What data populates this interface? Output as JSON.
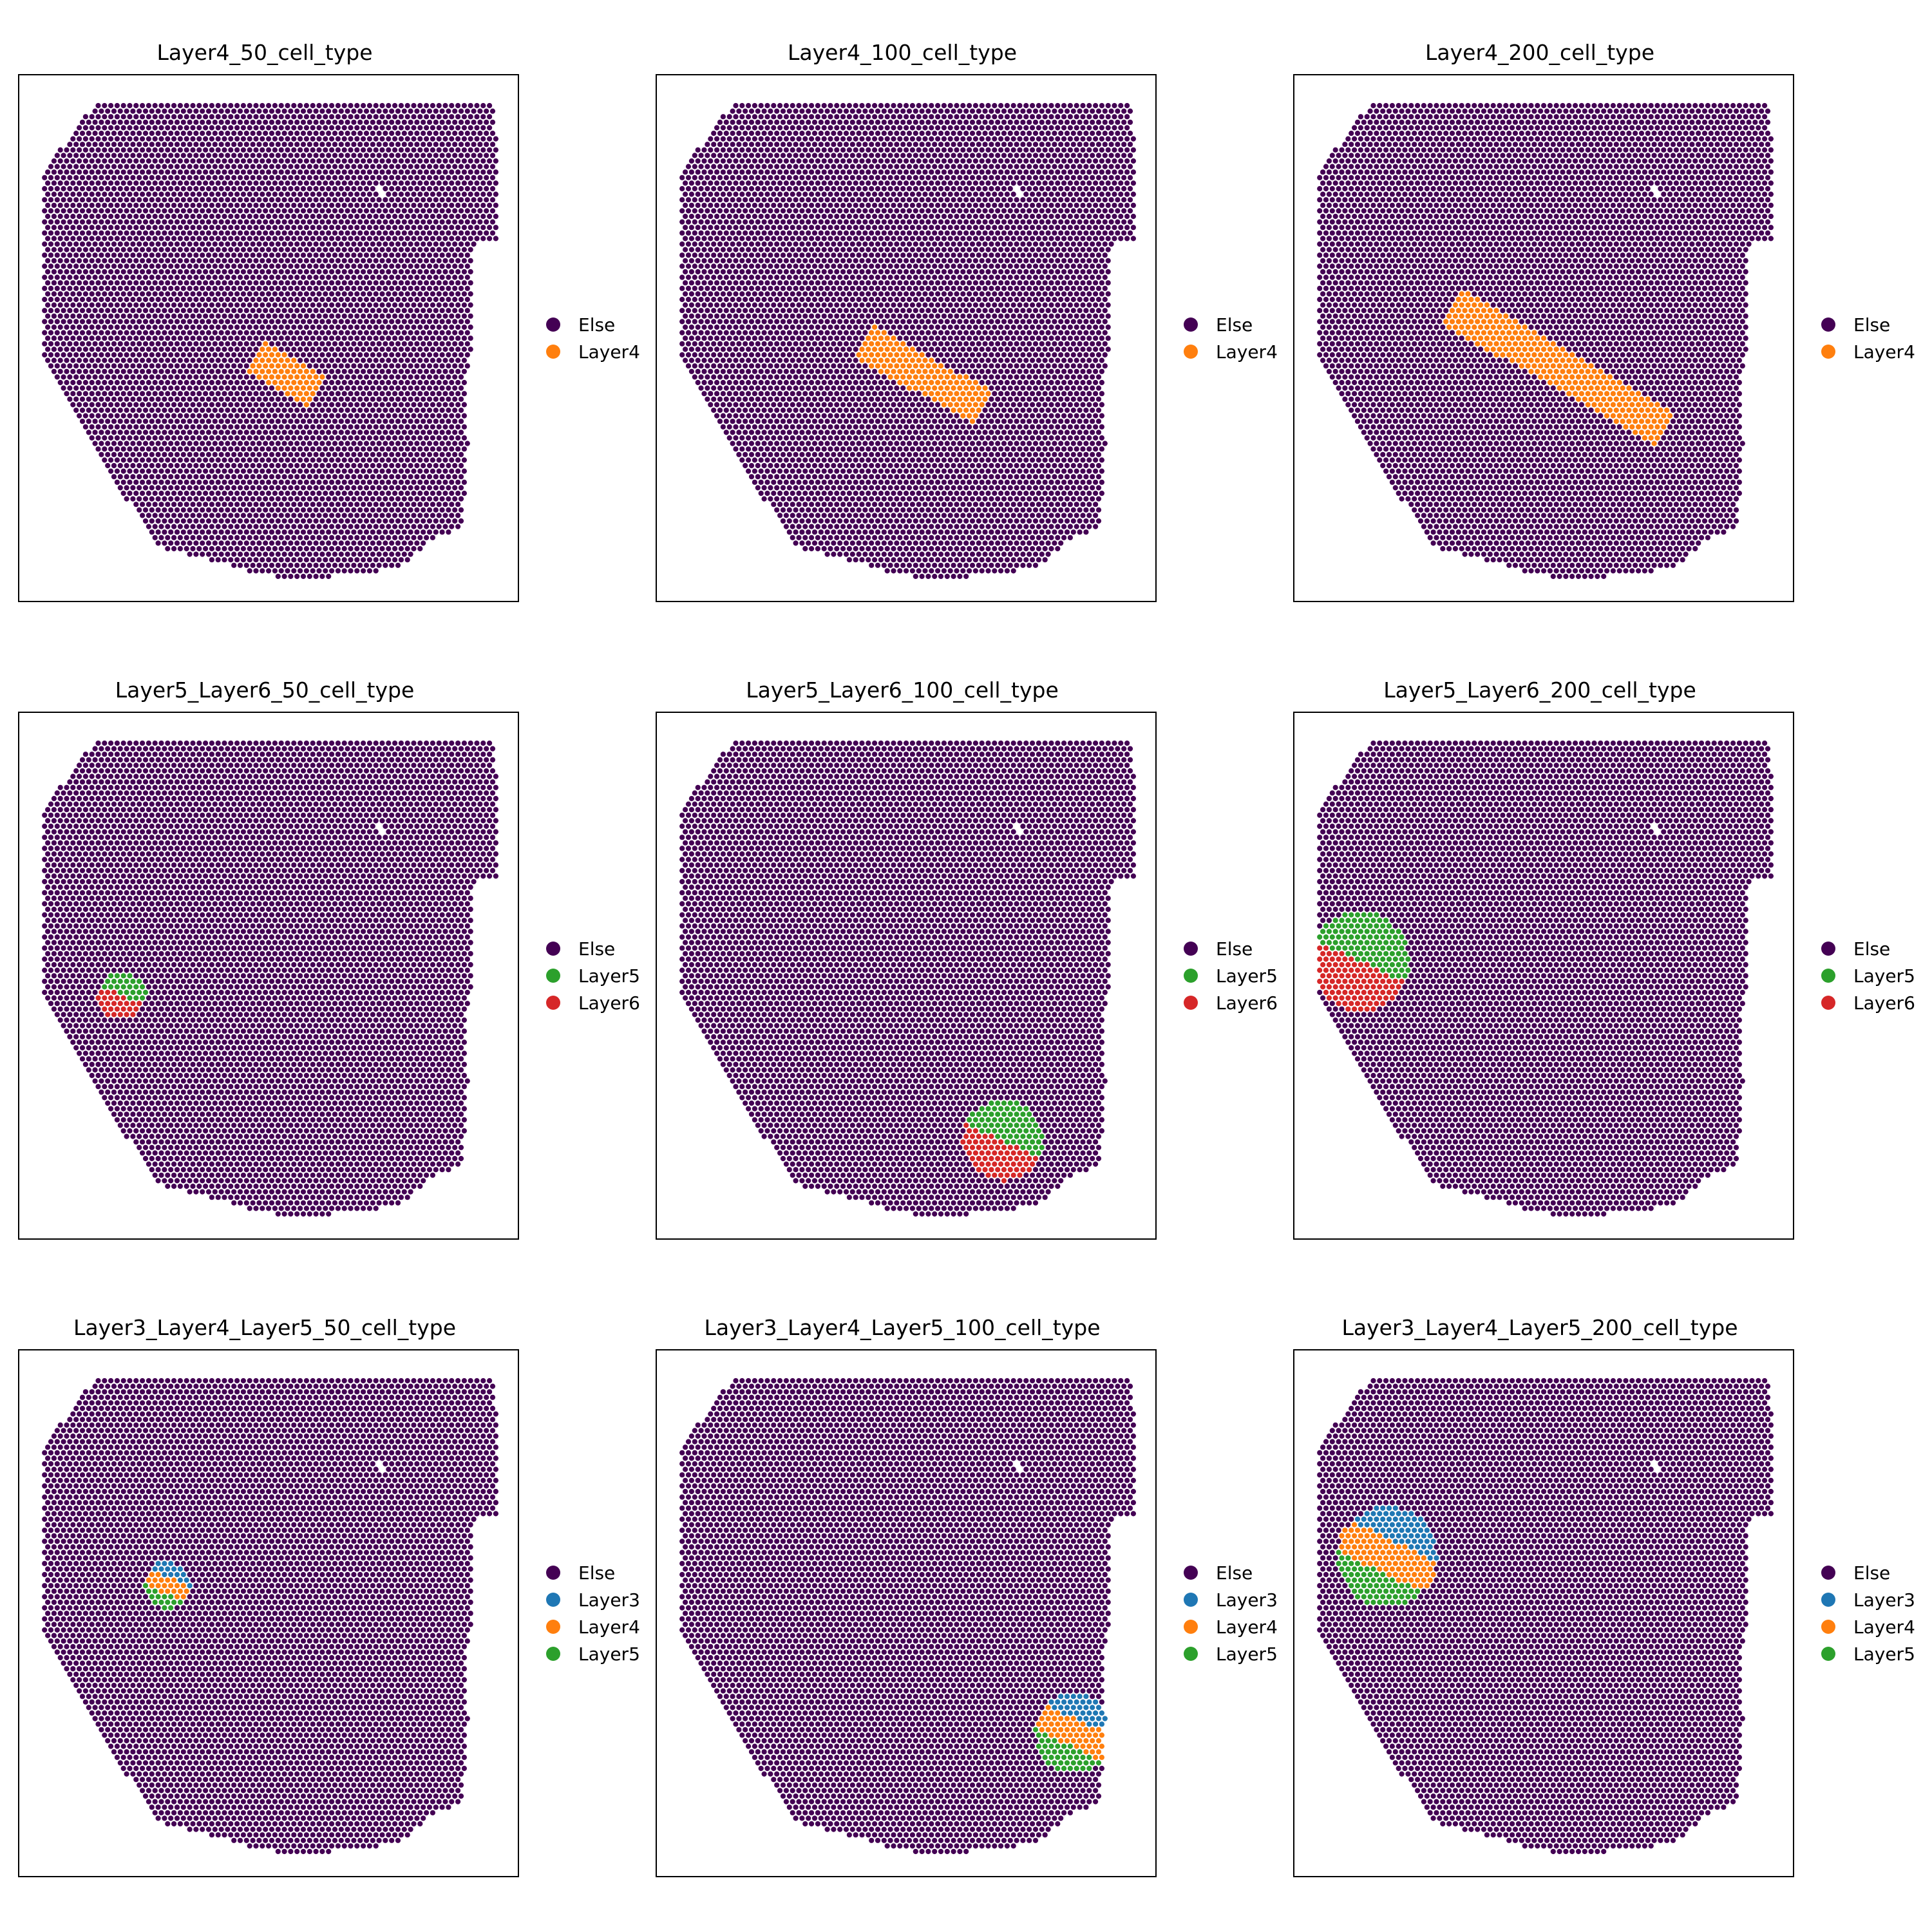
{
  "colors": {
    "Else": "#440154",
    "Layer3": "#1f77b4",
    "Layer4": "#ff7f0e",
    "Layer5": "#2ca02c",
    "Layer6": "#d62728"
  },
  "chart_data": [
    {
      "type": "scatter",
      "title": "Layer4_50_cell_type",
      "legend": [
        "Else",
        "Layer4"
      ],
      "regions": [
        {
          "center": [
            0.53,
            0.565
          ],
          "size": 50,
          "angle": 30,
          "layers": [
            "Layer4"
          ]
        }
      ]
    },
    {
      "type": "scatter",
      "title": "Layer4_100_cell_type",
      "legend": [
        "Else",
        "Layer4"
      ],
      "regions": [
        {
          "center": [
            0.53,
            0.565
          ],
          "size": 100,
          "angle": 30,
          "layers": [
            "Layer4"
          ]
        }
      ]
    },
    {
      "type": "scatter",
      "title": "Layer4_200_cell_type",
      "legend": [
        "Else",
        "Layer4"
      ],
      "regions": [
        {
          "center": [
            0.53,
            0.555
          ],
          "size": 200,
          "angle": 30,
          "layers": [
            "Layer4"
          ]
        }
      ]
    },
    {
      "type": "scatter",
      "title": "Layer5_Layer6_50_cell_type",
      "legend": [
        "Else",
        "Layer5",
        "Layer6"
      ],
      "regions": [
        {
          "center": [
            0.205,
            0.535
          ],
          "size": 50,
          "angle": 25,
          "layers": [
            "Layer5",
            "Layer6"
          ]
        }
      ]
    },
    {
      "type": "scatter",
      "title": "Layer5_Layer6_100_cell_type",
      "legend": [
        "Else",
        "Layer5",
        "Layer6"
      ],
      "regions": [
        {
          "center": [
            0.69,
            0.81
          ],
          "size": 100,
          "angle": 25,
          "layers": [
            "Layer5",
            "Layer6"
          ]
        }
      ]
    },
    {
      "type": "scatter",
      "title": "Layer5_Layer6_200_cell_type",
      "legend": [
        "Else",
        "Layer5",
        "Layer6"
      ],
      "regions": [
        {
          "center": [
            0.13,
            0.47
          ],
          "size": 200,
          "angle": 25,
          "layers": [
            "Layer5",
            "Layer6"
          ]
        }
      ]
    },
    {
      "type": "scatter",
      "title": "Layer3_Layer4_Layer5_50_cell_type",
      "legend": [
        "Else",
        "Layer3",
        "Layer4",
        "Layer5"
      ],
      "regions": [
        {
          "center": [
            0.295,
            0.445
          ],
          "size": 50,
          "angle": 25,
          "layers": [
            "Layer3",
            "Layer4",
            "Layer5"
          ]
        }
      ]
    },
    {
      "type": "scatter",
      "title": "Layer3_Layer4_Layer5_100_cell_type",
      "legend": [
        "Else",
        "Layer3",
        "Layer4",
        "Layer5"
      ],
      "regions": [
        {
          "center": [
            0.835,
            0.725
          ],
          "size": 100,
          "angle": 25,
          "layers": [
            "Layer3",
            "Layer4",
            "Layer5"
          ]
        }
      ]
    },
    {
      "type": "scatter",
      "title": "Layer3_Layer4_Layer5_200_cell_type",
      "legend": [
        "Else",
        "Layer3",
        "Layer4",
        "Layer5"
      ],
      "regions": [
        {
          "center": [
            0.185,
            0.39
          ],
          "size": 200,
          "angle": 25,
          "layers": [
            "Layer3",
            "Layer4",
            "Layer5"
          ]
        }
      ]
    }
  ]
}
